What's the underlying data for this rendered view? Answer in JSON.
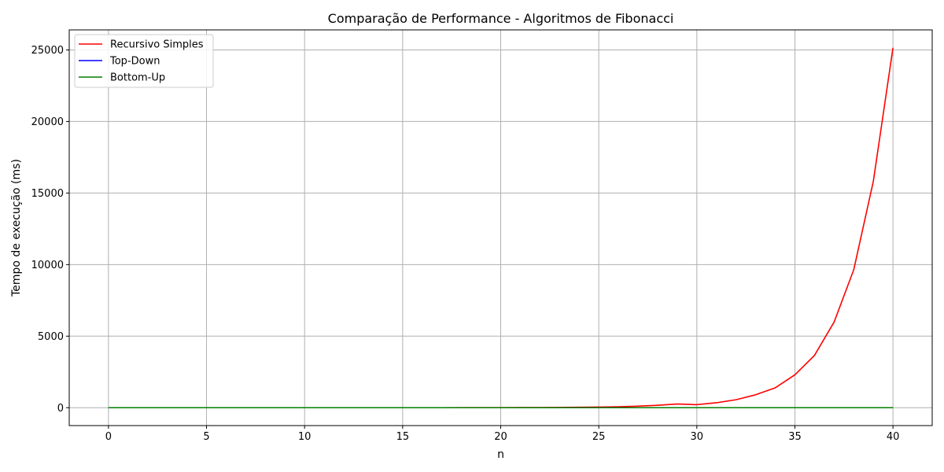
{
  "chart_data": {
    "type": "line",
    "title": "Comparação de Performance - Algoritmos de Fibonacci",
    "xlabel": "n",
    "ylabel": "Tempo de execução (ms)",
    "xlim": [
      -2,
      42
    ],
    "ylim": [
      -1250,
      26400
    ],
    "xticks": [
      0,
      5,
      10,
      15,
      20,
      25,
      30,
      35,
      40
    ],
    "yticks": [
      0,
      5000,
      10000,
      15000,
      20000,
      25000
    ],
    "grid": true,
    "legend_position": "upper-left",
    "x": [
      0,
      1,
      2,
      3,
      4,
      5,
      6,
      7,
      8,
      9,
      10,
      11,
      12,
      13,
      14,
      15,
      16,
      17,
      18,
      19,
      20,
      21,
      22,
      23,
      24,
      25,
      26,
      27,
      28,
      29,
      30,
      31,
      32,
      33,
      34,
      35,
      36,
      37,
      38,
      39,
      40
    ],
    "series": [
      {
        "name": "Recursivo Simples",
        "color": "#ff0000",
        "values": [
          0,
          0,
          0,
          0,
          0,
          0,
          0,
          0,
          0,
          0,
          0,
          0,
          0,
          0,
          0,
          0,
          1,
          1,
          2,
          3,
          5,
          8,
          12,
          18,
          29,
          46,
          70,
          109,
          170,
          260,
          213,
          345,
          558,
          905,
          1390,
          2300,
          3660,
          5990,
          9640,
          15830,
          25150
        ]
      },
      {
        "name": "Top-Down",
        "color": "#0000ff",
        "values": [
          0,
          0,
          0,
          0,
          0,
          0,
          0,
          0,
          0,
          0,
          0,
          0,
          0,
          0,
          0,
          0,
          0,
          0,
          0,
          0,
          0,
          0,
          0,
          0,
          0,
          0,
          0,
          0,
          0,
          0,
          0,
          0,
          0,
          0,
          0,
          0,
          0,
          0,
          0,
          0,
          0
        ]
      },
      {
        "name": "Bottom-Up",
        "color": "#008000",
        "values": [
          0,
          0,
          0,
          0,
          0,
          0,
          0,
          0,
          0,
          0,
          0,
          0,
          0,
          0,
          0,
          0,
          0,
          0,
          0,
          0,
          0,
          0,
          0,
          0,
          0,
          0,
          0,
          0,
          0,
          0,
          0,
          0,
          0,
          0,
          0,
          0,
          0,
          0,
          0,
          0,
          0
        ]
      }
    ]
  }
}
